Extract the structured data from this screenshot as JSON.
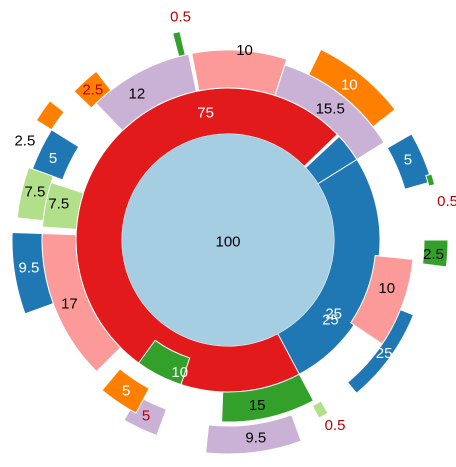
{
  "chart_data": {
    "type": "sunburst",
    "title": "",
    "center": {
      "label": "100",
      "value": 100,
      "color": "#a6cee3"
    },
    "colors": {
      "red": "#e31a1c",
      "blue": "#1f78b4",
      "lilac": "#cab2d6",
      "pink": "#fb9a99",
      "green": "#33a02c",
      "light_green": "#b2df8a",
      "orange": "#ff7f00",
      "small_label": "#c00000"
    },
    "segments": [
      {
        "id": "s75",
        "label": "75",
        "value": 75,
        "ring": 1,
        "color": "#e31a1c",
        "label_color": "#ffffff"
      },
      {
        "id": "s25a",
        "label": "25",
        "value": 25,
        "ring": 1,
        "color": "#1f78b4",
        "label_color": "#ffffff"
      },
      {
        "id": "s25b",
        "label": "25",
        "value": 25,
        "ring": 2,
        "color": "#1f78b4",
        "label_color": "#ffffff"
      },
      {
        "id": "s15",
        "label": "15",
        "value": 15,
        "ring": 2,
        "color": "#33a02c",
        "label_color": "#000000"
      },
      {
        "id": "s10a",
        "label": "10",
        "value": 10,
        "ring": 2,
        "color": "#33a02c",
        "label_color": "#ffffff"
      },
      {
        "id": "s17",
        "label": "17",
        "value": 17,
        "ring": 2,
        "color": "#fb9a99",
        "label_color": "#000000"
      },
      {
        "id": "s75b",
        "label": "7.5",
        "value": 7.5,
        "ring": 2,
        "color": "#b2df8a",
        "label_color": "#000000"
      },
      {
        "id": "s5a",
        "label": "5",
        "value": 5,
        "ring": 2,
        "color": "#1f78b4",
        "label_color": "#ffffff"
      },
      {
        "id": "s12",
        "label": "12",
        "value": 12,
        "ring": 2,
        "color": "#cab2d6",
        "label_color": "#000000"
      },
      {
        "id": "s10b",
        "label": "10",
        "value": 10,
        "ring": 2,
        "color": "#fb9a99",
        "label_color": "#000000"
      },
      {
        "id": "s155",
        "label": "15.5",
        "value": 15.5,
        "ring": 2,
        "color": "#cab2d6",
        "label_color": "#000000"
      },
      {
        "id": "s5b",
        "label": "5",
        "value": 5,
        "ring": 2,
        "color": "#1f78b4",
        "label_color": "#ffffff"
      },
      {
        "id": "s25c",
        "label": "2.5",
        "value": 2.5,
        "ring": 3,
        "color": "#ff7f00",
        "label_color": "#c00000"
      },
      {
        "id": "s05a",
        "label": "0.5",
        "value": 0.5,
        "ring": 3,
        "color": "#33a02c",
        "label_color": "#c00000"
      },
      {
        "id": "s10c",
        "label": "10",
        "value": 10,
        "ring": 3,
        "color": "#ff7f00",
        "label_color": "#ffffff"
      },
      {
        "id": "s05b",
        "label": "0.5",
        "value": 0.5,
        "ring": 3,
        "color": "#33a02c",
        "label_color": "#c00000"
      },
      {
        "id": "s25d",
        "label": "2.5",
        "value": 2.5,
        "ring": 3,
        "color": "#33a02c",
        "label_color": "#000000"
      },
      {
        "id": "s10d",
        "label": "10",
        "value": 10,
        "ring": 3,
        "color": "#fb9a99",
        "label_color": "#000000"
      },
      {
        "id": "s25e",
        "label": "25",
        "value": 25,
        "ring": 3,
        "color": "#1f78b4",
        "label_color": "#ffffff"
      },
      {
        "id": "s95a",
        "label": "9.5",
        "value": 9.5,
        "ring": 3,
        "color": "#cab2d6",
        "label_color": "#000000"
      },
      {
        "id": "s05c",
        "label": "0.5",
        "value": 0.5,
        "ring": 3,
        "color": "#b2df8a",
        "label_color": "#c00000"
      },
      {
        "id": "s5c",
        "label": "5",
        "value": 5,
        "ring": 3,
        "color": "#cab2d6",
        "label_color": "#c00000"
      },
      {
        "id": "s5d",
        "label": "5",
        "value": 5,
        "ring": 3,
        "color": "#ff7f00",
        "label_color": "#ffffff"
      },
      {
        "id": "s95b",
        "label": "9.5",
        "value": 9.5,
        "ring": 3,
        "color": "#1f78b4",
        "label_color": "#ffffff"
      },
      {
        "id": "s75c",
        "label": "7.5",
        "value": 7.5,
        "ring": 3,
        "color": "#b2df8a",
        "label_color": "#000000"
      },
      {
        "id": "s25f",
        "label": "2.5",
        "value": 2.5,
        "ring": 3,
        "color": "#ff7f00",
        "label_color": "#000000"
      }
    ]
  }
}
